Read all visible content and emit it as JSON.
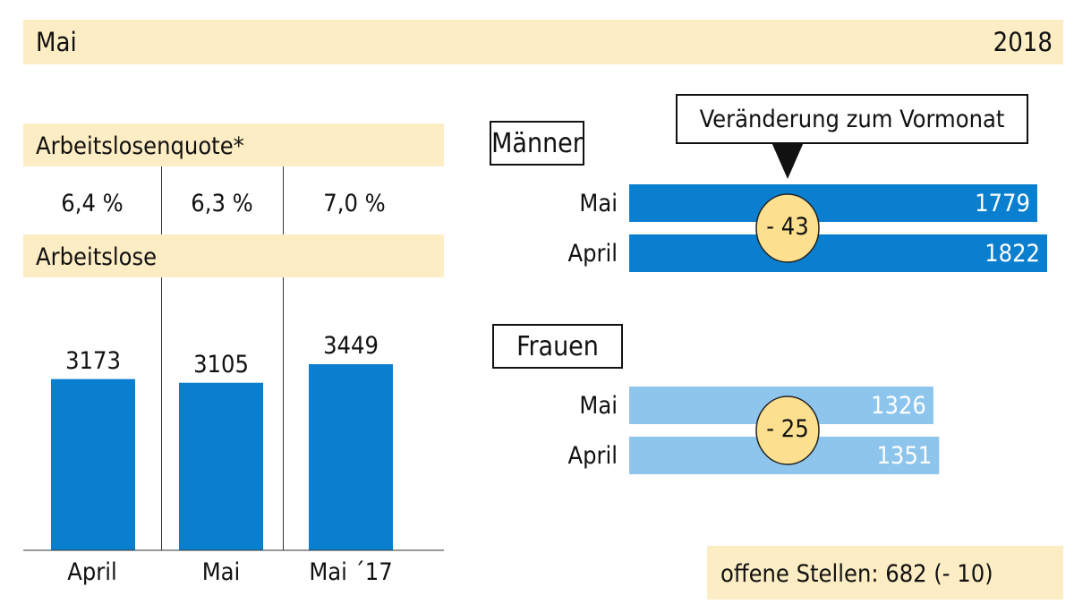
{
  "header": {
    "month": "Mai",
    "year": "2018"
  },
  "colors": {
    "band": "#fdedc4",
    "men_bar": "#0a7fcf",
    "women_bar": "#8ec5ec",
    "circle": "#fce08f"
  },
  "chart_data": [
    {
      "type": "table",
      "title": "Arbeitslosenquote*",
      "categories": [
        "April",
        "Mai",
        "Mai ´17"
      ],
      "values_label": [
        "6,4 %",
        "6,3  %",
        "7,0 %"
      ],
      "values": [
        6.4,
        6.3,
        7.0
      ]
    },
    {
      "type": "bar",
      "title": "Arbeitslose",
      "categories": [
        "April",
        "Mai",
        "Mai ´17"
      ],
      "values": [
        3173,
        3105,
        3449
      ],
      "labels": [
        "3173",
        "3105",
        "3449"
      ],
      "ylim": [
        0,
        3449
      ]
    },
    {
      "type": "bar",
      "orientation": "horizontal",
      "title": "Männer",
      "categories": [
        "Mai",
        "April"
      ],
      "values": [
        1779,
        1822
      ],
      "labels": [
        "1779",
        "1822"
      ],
      "change": "- 43",
      "callout": "Veränderung zum Vormonat"
    },
    {
      "type": "bar",
      "orientation": "horizontal",
      "title": "Frauen",
      "categories": [
        "Mai",
        "April"
      ],
      "values": [
        1326,
        1351
      ],
      "labels": [
        "1326",
        "1351"
      ],
      "change": "- 25"
    }
  ],
  "footer": {
    "open_positions": "offene Stellen: 682 (- 10)"
  }
}
